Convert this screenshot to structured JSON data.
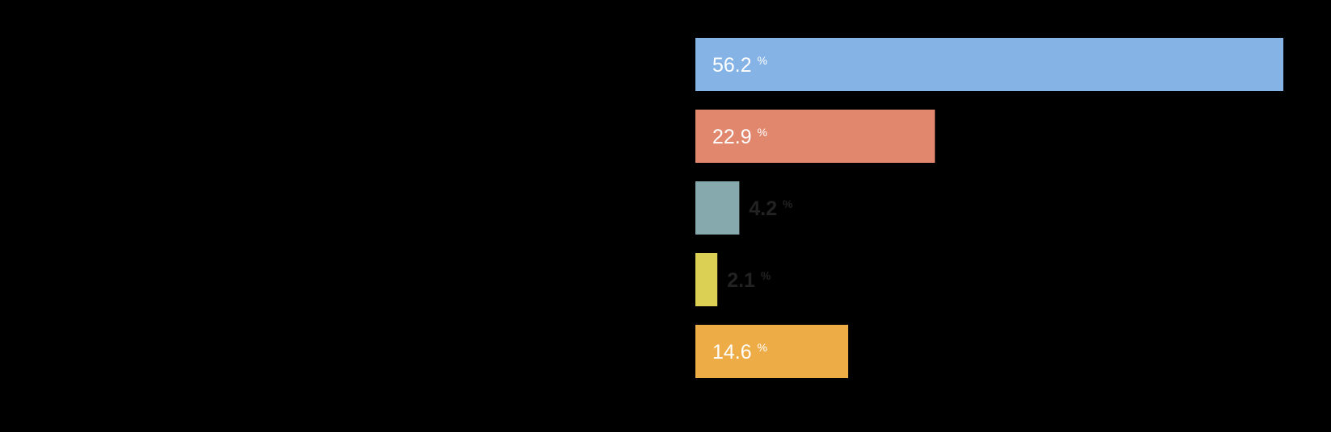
{
  "chart_data": {
    "type": "bar",
    "orientation": "horizontal",
    "values": [
      56.2,
      22.9,
      4.2,
      2.1,
      14.6
    ],
    "value_labels": [
      "56.2",
      "22.9",
      "4.2",
      "2.1",
      "14.6"
    ],
    "unit": "%",
    "colors": [
      "#85b3e6",
      "#e0876e",
      "#85a9ad",
      "#dbd054",
      "#eeac47"
    ],
    "xlim": [
      0,
      56.2
    ],
    "grid": false,
    "legend": "none"
  }
}
